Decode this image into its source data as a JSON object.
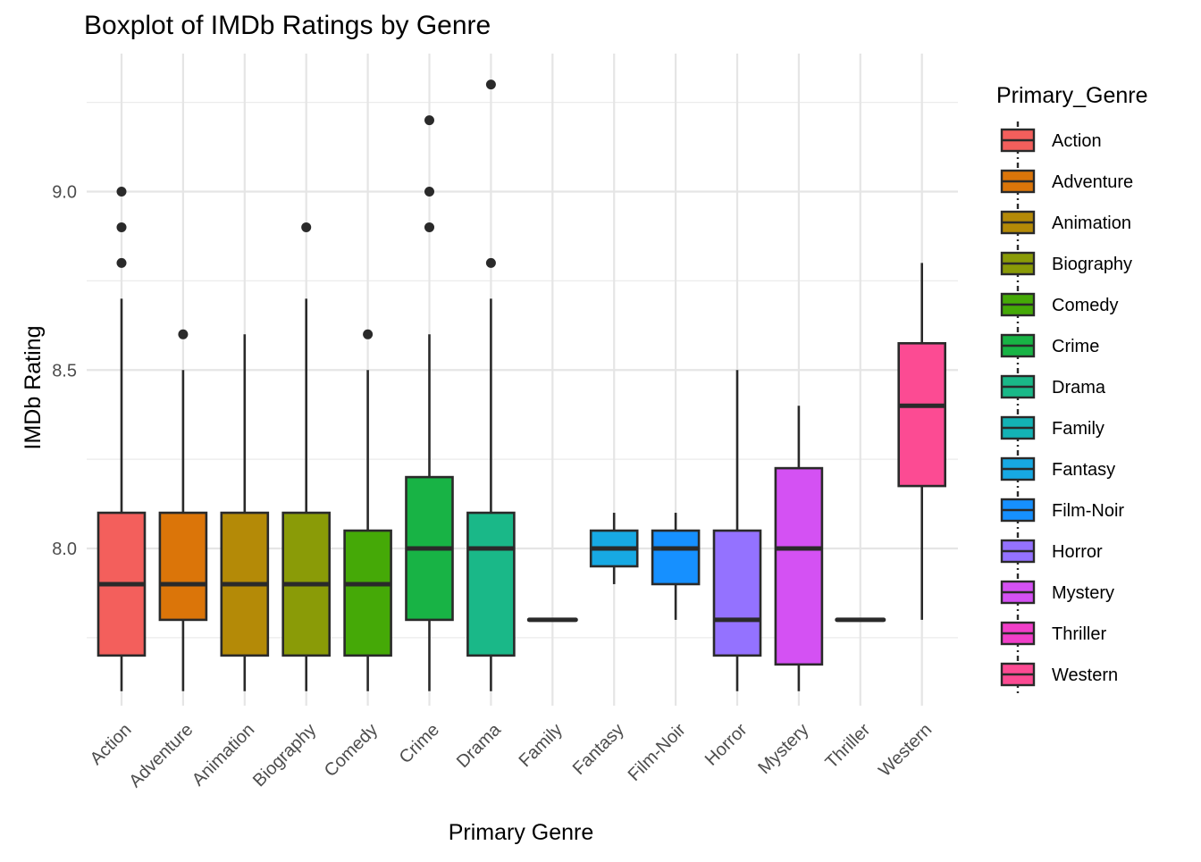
{
  "chart_data": {
    "type": "boxplot",
    "title": "Boxplot of IMDb Ratings by Genre",
    "xlabel": "Primary Genre",
    "ylabel": "IMDb Rating",
    "ylim": [
      7.56,
      9.33
    ],
    "yticks": [
      8.0,
      8.5,
      9.0
    ],
    "ytick_labels": [
      "8.0",
      "8.5",
      "9.0"
    ],
    "grid": true,
    "legend": {
      "title": "Primary_Genre",
      "position": "right"
    },
    "categories": [
      "Action",
      "Adventure",
      "Animation",
      "Biography",
      "Comedy",
      "Crime",
      "Drama",
      "Family",
      "Fantasy",
      "Film-Noir",
      "Horror",
      "Mystery",
      "Thriller",
      "Western"
    ],
    "colors": [
      "#F8766D",
      "#DB8E00",
      "#AEA200",
      "#64B200",
      "#00BD5C",
      "#00C1A7",
      "#00BADE",
      "#00A6FF",
      "#B385FF",
      "#EF67EB",
      "#FF63B6",
      "#F8766D",
      "#DB8E00",
      "#AEA200"
    ],
    "fill_colors": [
      "#F35F5C",
      "#DB7509",
      "#B48A07",
      "#8A9B07",
      "#45A907",
      "#18B345",
      "#1AB888",
      "#13B2B5",
      "#17A9E3",
      "#1690FF",
      "#9472FF",
      "#D451F3",
      "#F13FC8",
      "#FC4B93"
    ],
    "series": [
      {
        "name": "Action",
        "min": 7.6,
        "q1": 7.7,
        "median": 7.9,
        "q3": 8.1,
        "max": 8.7,
        "outliers": [
          8.8,
          8.9,
          9.0
        ]
      },
      {
        "name": "Adventure",
        "min": 7.6,
        "q1": 7.8,
        "median": 7.9,
        "q3": 8.1,
        "max": 8.5,
        "outliers": [
          8.6
        ]
      },
      {
        "name": "Animation",
        "min": 7.6,
        "q1": 7.7,
        "median": 7.9,
        "q3": 8.1,
        "max": 8.6,
        "outliers": []
      },
      {
        "name": "Biography",
        "min": 7.6,
        "q1": 7.7,
        "median": 7.9,
        "q3": 8.1,
        "max": 8.7,
        "outliers": [
          8.9
        ]
      },
      {
        "name": "Comedy",
        "min": 7.6,
        "q1": 7.7,
        "median": 7.9,
        "q3": 8.05,
        "max": 8.5,
        "outliers": [
          8.6
        ]
      },
      {
        "name": "Crime",
        "min": 7.6,
        "q1": 7.8,
        "median": 8.0,
        "q3": 8.2,
        "max": 8.6,
        "outliers": [
          8.9,
          9.0,
          9.2
        ]
      },
      {
        "name": "Drama",
        "min": 7.6,
        "q1": 7.7,
        "median": 8.0,
        "q3": 8.1,
        "max": 8.7,
        "outliers": [
          8.8,
          9.3
        ]
      },
      {
        "name": "Family",
        "min": 7.8,
        "q1": 7.8,
        "median": 7.8,
        "q3": 7.8,
        "max": 7.8,
        "outliers": []
      },
      {
        "name": "Fantasy",
        "min": 7.9,
        "q1": 7.95,
        "median": 8.0,
        "q3": 8.05,
        "max": 8.1,
        "outliers": []
      },
      {
        "name": "Film-Noir",
        "min": 7.8,
        "q1": 7.9,
        "median": 8.0,
        "q3": 8.05,
        "max": 8.1,
        "outliers": []
      },
      {
        "name": "Horror",
        "min": 7.6,
        "q1": 7.7,
        "median": 7.8,
        "q3": 8.05,
        "max": 8.5,
        "outliers": []
      },
      {
        "name": "Mystery",
        "min": 7.6,
        "q1": 7.675,
        "median": 8.0,
        "q3": 8.225,
        "max": 8.4,
        "outliers": []
      },
      {
        "name": "Thriller",
        "min": 7.8,
        "q1": 7.8,
        "median": 7.8,
        "q3": 7.8,
        "max": 7.8,
        "outliers": []
      },
      {
        "name": "Western",
        "min": 7.8,
        "q1": 8.175,
        "median": 8.4,
        "q3": 8.575,
        "max": 8.8,
        "outliers": []
      }
    ]
  }
}
